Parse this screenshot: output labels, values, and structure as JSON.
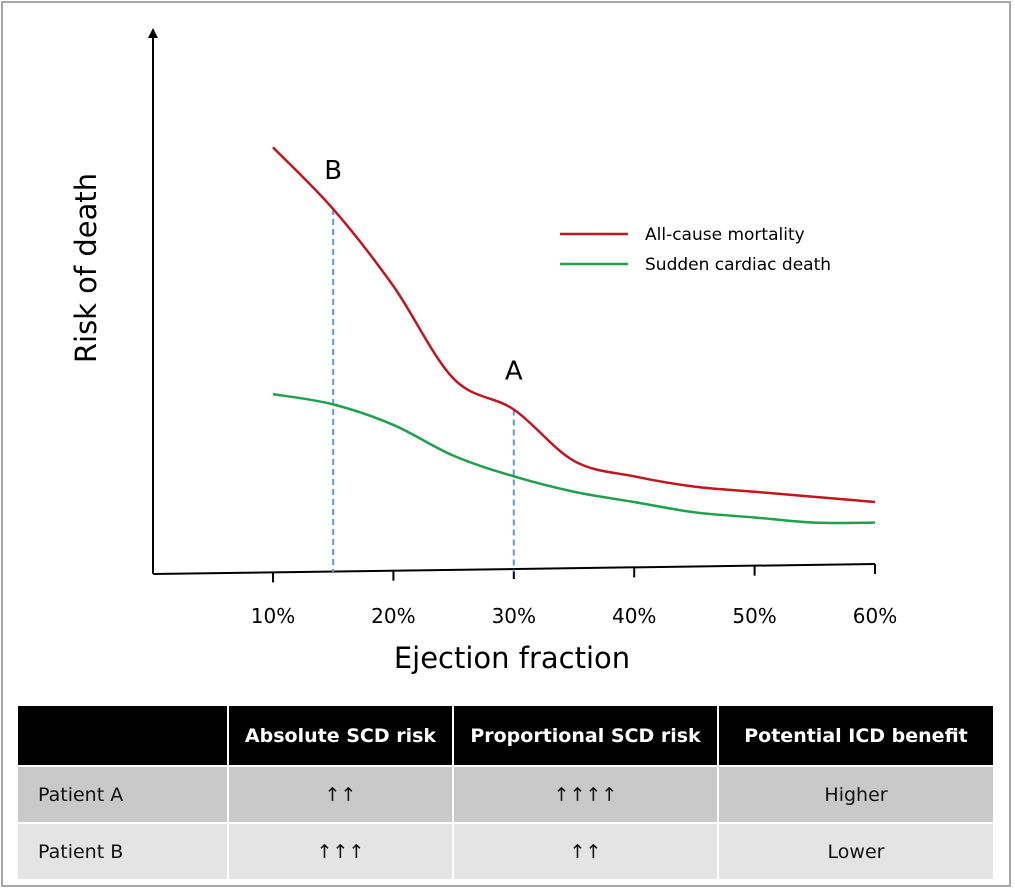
{
  "chart_data": {
    "type": "line",
    "xlabel": "Ejection fraction",
    "ylabel": "Risk of death",
    "x_ticks": [
      "10%",
      "20%",
      "30%",
      "40%",
      "50%",
      "60%"
    ],
    "xlim": [
      10,
      60
    ],
    "ylim": [
      0,
      1
    ],
    "grid": false,
    "legend_position": "top-right",
    "series": [
      {
        "name": "All-cause mortality",
        "color": "#c0161c",
        "x": [
          10,
          15,
          20,
          25,
          30,
          35,
          40,
          45,
          50,
          55,
          60
        ],
        "y": [
          0.83,
          0.71,
          0.56,
          0.38,
          0.32,
          0.22,
          0.19,
          0.17,
          0.16,
          0.15,
          0.14
        ]
      },
      {
        "name": "Sudden cardiac death",
        "color": "#1fa04b",
        "x": [
          10,
          15,
          20,
          25,
          30,
          35,
          40,
          45,
          50,
          55,
          60
        ],
        "y": [
          0.35,
          0.33,
          0.29,
          0.23,
          0.19,
          0.16,
          0.14,
          0.12,
          0.11,
          0.1,
          0.1
        ]
      }
    ],
    "annotations": [
      {
        "label": "B",
        "x": 15,
        "y": 0.71
      },
      {
        "label": "A",
        "x": 30,
        "y": 0.32
      }
    ],
    "reference_lines": [
      {
        "x": 15,
        "color": "#5b9bd5",
        "style": "dashed"
      },
      {
        "x": 30,
        "color": "#5b9bd5",
        "style": "dashed"
      }
    ]
  },
  "table": {
    "headers": [
      "",
      "Absolute SCD risk",
      "Proportional SCD risk",
      "Potential ICD benefit"
    ],
    "rows": [
      {
        "label": "Patient A",
        "absolute": "↑↑",
        "proportional": "↑↑↑↑",
        "benefit": "Higher"
      },
      {
        "label": "Patient B",
        "absolute": "↑↑↑",
        "proportional": "↑↑",
        "benefit": "Lower"
      }
    ]
  }
}
